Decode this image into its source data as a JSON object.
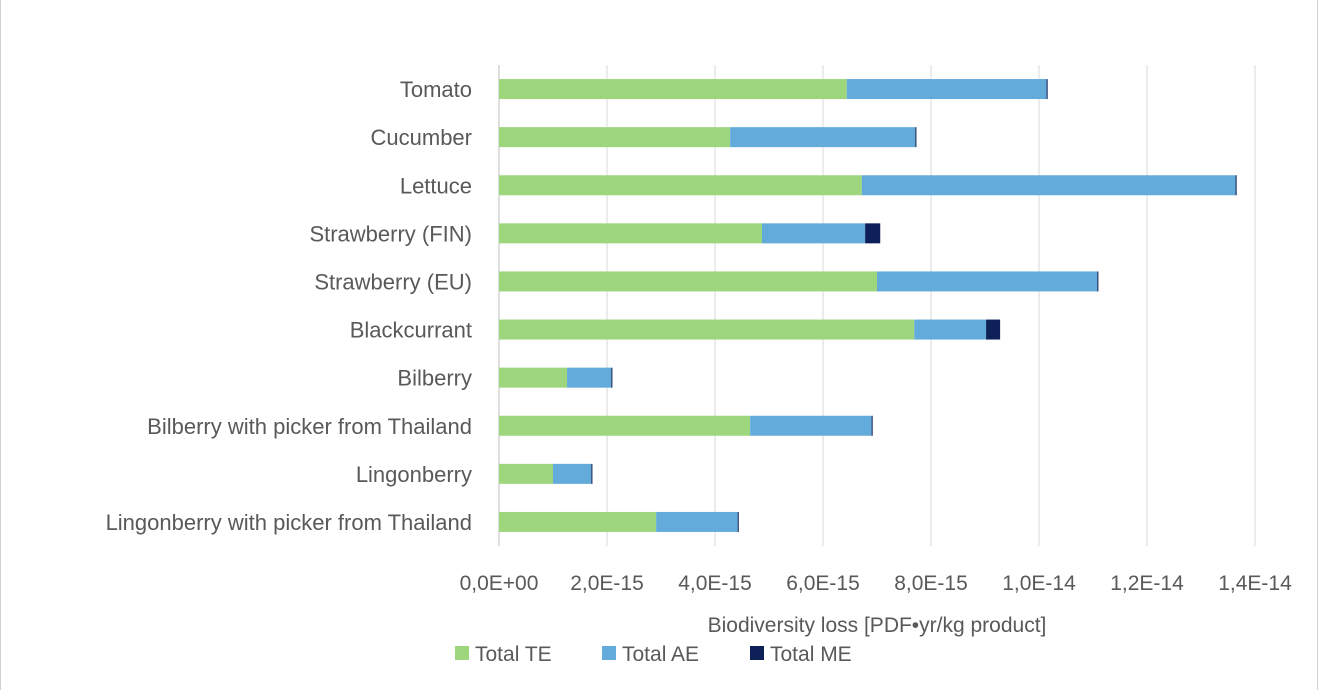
{
  "chart_data": {
    "type": "bar",
    "orientation": "horizontal",
    "stacked": true,
    "title": "",
    "xlabel": "Biodiversity loss [PDF•yr/kg product]",
    "ylabel": "",
    "xlim": [
      0,
      1.4e-14
    ],
    "x_ticks": [
      0,
      2e-15,
      4e-15,
      6e-15,
      8e-15,
      1e-14,
      1.2e-14,
      1.4e-14
    ],
    "x_tick_labels": [
      "0,0E+00",
      "2,0E-15",
      "4,0E-15",
      "6,0E-15",
      "8,0E-15",
      "1,0E-14",
      "1,2E-14",
      "1,4E-14"
    ],
    "grid": "vertical",
    "legend": "bottom",
    "categories": [
      "Tomato",
      "Cucumber",
      "Lettuce",
      "Strawberry (FIN)",
      "Strawberry (EU)",
      "Blackcurrant",
      "Bilberry",
      "Bilberry with picker from Thailand",
      "Lingonberry",
      "Lingonberry with picker from Thailand"
    ],
    "series": [
      {
        "name": "Total TE",
        "color": "#9dd67d",
        "values": [
          6.44e-15,
          4.28e-15,
          6.72e-15,
          4.87e-15,
          7e-15,
          7.69e-15,
          1.26e-15,
          4.65e-15,
          1e-15,
          2.91e-15
        ]
      },
      {
        "name": "Total AE",
        "color": "#62abdb",
        "values": [
          3.7e-15,
          3.43e-15,
          6.92e-15,
          1.91e-15,
          4.08e-15,
          1.33e-15,
          8.2e-16,
          2.25e-15,
          7.1e-16,
          1.51e-15
        ]
      },
      {
        "name": "Total ME",
        "color": "#0d2158",
        "values": [
          2e-17,
          2e-17,
          2e-17,
          2.8e-16,
          2e-17,
          2.6e-16,
          2e-17,
          2e-17,
          2e-17,
          2e-17
        ]
      }
    ]
  }
}
